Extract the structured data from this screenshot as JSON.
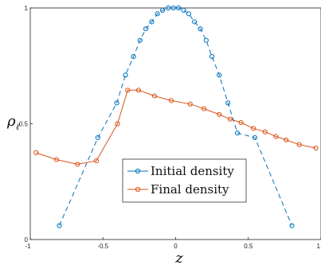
{
  "chart_data": {
    "type": "line",
    "xlabel": "z",
    "ylabel": "ρ",
    "ylabel_subscript": "ℓ",
    "xlim": [
      -1,
      1
    ],
    "ylim": [
      0,
      1
    ],
    "x_ticks": [
      {
        "value": -1,
        "label": "-1"
      },
      {
        "value": -0.5,
        "label": "-0.5"
      },
      {
        "value": 0,
        "label": "0"
      },
      {
        "value": 0.5,
        "label": "0.5"
      },
      {
        "value": 1,
        "label": "1"
      }
    ],
    "y_ticks": [
      {
        "value": 0,
        "label": "0"
      },
      {
        "value": 0.5,
        "label": "0.5"
      },
      {
        "value": 1,
        "label": "1"
      }
    ],
    "grid": false,
    "legend_position": "lower-center",
    "series": [
      {
        "name": "Initial density",
        "color": "#0072BD",
        "line_style": "dashed",
        "marker": "circle",
        "points": [
          [
            -0.8,
            0.06
          ],
          [
            -0.535,
            0.44
          ],
          [
            -0.405,
            0.59
          ],
          [
            -0.345,
            0.71
          ],
          [
            -0.29,
            0.79
          ],
          [
            -0.245,
            0.86
          ],
          [
            -0.205,
            0.91
          ],
          [
            -0.165,
            0.94
          ],
          [
            -0.125,
            0.975
          ],
          [
            -0.09,
            0.99
          ],
          [
            -0.05,
            1.0
          ],
          [
            -0.015,
            1.0
          ],
          [
            0.02,
            1.0
          ],
          [
            0.055,
            0.99
          ],
          [
            0.09,
            0.975
          ],
          [
            0.13,
            0.94
          ],
          [
            0.17,
            0.91
          ],
          [
            0.21,
            0.86
          ],
          [
            0.25,
            0.79
          ],
          [
            0.3,
            0.71
          ],
          [
            0.36,
            0.59
          ],
          [
            0.425,
            0.46
          ],
          [
            0.545,
            0.44
          ],
          [
            0.8,
            0.06
          ]
        ]
      },
      {
        "name": "Final density",
        "color": "#D95319",
        "line_style": "solid",
        "marker": "circle",
        "points": [
          [
            -0.96,
            0.375
          ],
          [
            -0.82,
            0.345
          ],
          [
            -0.675,
            0.325
          ],
          [
            -0.545,
            0.34
          ],
          [
            -0.4,
            0.5
          ],
          [
            -0.33,
            0.645
          ],
          [
            -0.255,
            0.645
          ],
          [
            -0.145,
            0.62
          ],
          [
            -0.03,
            0.6
          ],
          [
            0.1,
            0.585
          ],
          [
            0.195,
            0.565
          ],
          [
            0.3,
            0.54
          ],
          [
            0.375,
            0.52
          ],
          [
            0.45,
            0.505
          ],
          [
            0.535,
            0.48
          ],
          [
            0.615,
            0.465
          ],
          [
            0.69,
            0.445
          ],
          [
            0.76,
            0.43
          ],
          [
            0.85,
            0.41
          ],
          [
            0.965,
            0.395
          ]
        ]
      }
    ]
  }
}
